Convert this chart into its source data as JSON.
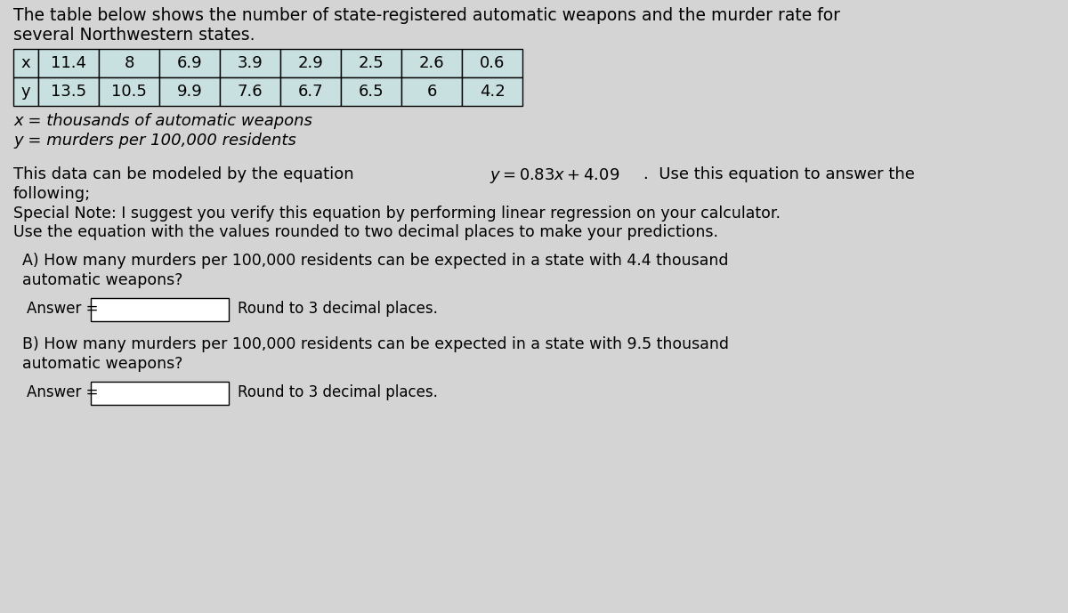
{
  "title_line1": "The table below shows the number of state-registered automatic weapons and the murder rate for",
  "title_line2": "several Northwestern states.",
  "table_x_label": "x",
  "table_y_label": "y",
  "x_values": [
    "11.4",
    "8",
    "6.9",
    "3.9",
    "2.9",
    "2.5",
    "2.6",
    "0.6"
  ],
  "y_values": [
    "13.5",
    "10.5",
    "9.9",
    "7.6",
    "6.7",
    "6.5",
    "6",
    "4.2"
  ],
  "x_def": "x = thousands of automatic weapons",
  "y_def": "y = murders per 100,000 residents",
  "special_note_line1": "Special Note: I suggest you verify this equation by performing linear regression on your calculator.",
  "special_note_line2": "Use the equation with the values rounded to two decimal places to make your predictions.",
  "q_a_line1": "A) How many murders per 100,000 residents can be expected in a state with 4.4 thousand",
  "q_a_line2": "automatic weapons?",
  "q_b_line1": "B) How many murders per 100,000 residents can be expected in a state with 9.5 thousand",
  "q_b_line2": "automatic weapons?",
  "answer_label": "Answer = ",
  "round_text": "Round to 3 decimal places.",
  "bg_color": "#d4d4d4",
  "table_cell_bg": "#c8e0e0",
  "table_border_color": "#000000",
  "text_color": "#000000",
  "input_box_color": "#ffffff",
  "font_size_title": 13.5,
  "font_size_body": 13,
  "font_size_table": 13,
  "font_size_note": 12.5
}
